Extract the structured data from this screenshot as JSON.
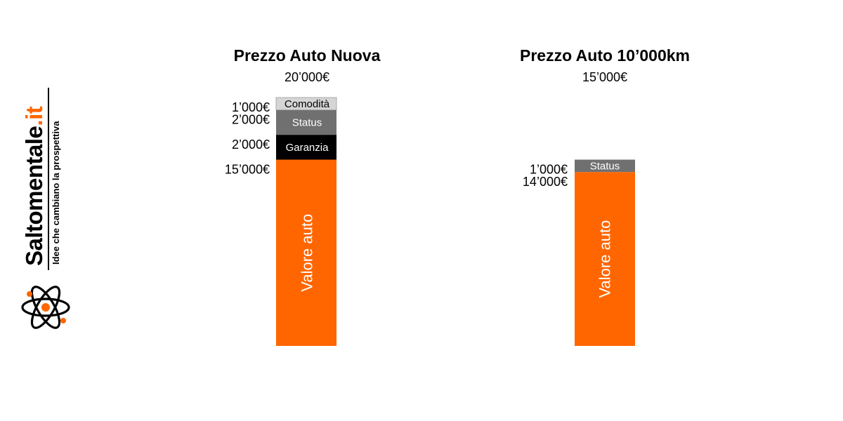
{
  "brand": {
    "name": "Saltomentale",
    "tld": ".it",
    "tagline": "Idee che cambiano la prospettiva",
    "icon": "atom-icon",
    "accent_color": "#ff6600"
  },
  "chart_data": [
    {
      "type": "bar",
      "stacked": true,
      "title": "Prezzo Auto Nuova",
      "subtitle": "20’000€",
      "total": 20000,
      "segments": [
        {
          "name": "Valore auto",
          "value": 15000,
          "label": "15’000€",
          "color": "#ff6600",
          "text_color": "#ffffff",
          "vertical": true
        },
        {
          "name": "Garanzia",
          "value": 2000,
          "label": "2’000€",
          "color": "#000000",
          "text_color": "#ffffff",
          "vertical": false
        },
        {
          "name": "Status",
          "value": 2000,
          "label": "2’000€",
          "color": "#707070",
          "text_color": "#ffffff",
          "vertical": false
        },
        {
          "name": "Comodità",
          "value": 1000,
          "label": "1’000€",
          "color": "#d5d5d5",
          "text_color": "#000000",
          "vertical": false
        }
      ]
    },
    {
      "type": "bar",
      "stacked": true,
      "title": "Prezzo Auto 10’000km",
      "subtitle": "15’000€",
      "total": 15000,
      "segments": [
        {
          "name": "Valore auto",
          "value": 14000,
          "label": "14’000€",
          "color": "#ff6600",
          "text_color": "#ffffff",
          "vertical": true
        },
        {
          "name": "Status",
          "value": 1000,
          "label": "1’000€",
          "color": "#707070",
          "text_color": "#ffffff",
          "vertical": false
        }
      ]
    }
  ]
}
